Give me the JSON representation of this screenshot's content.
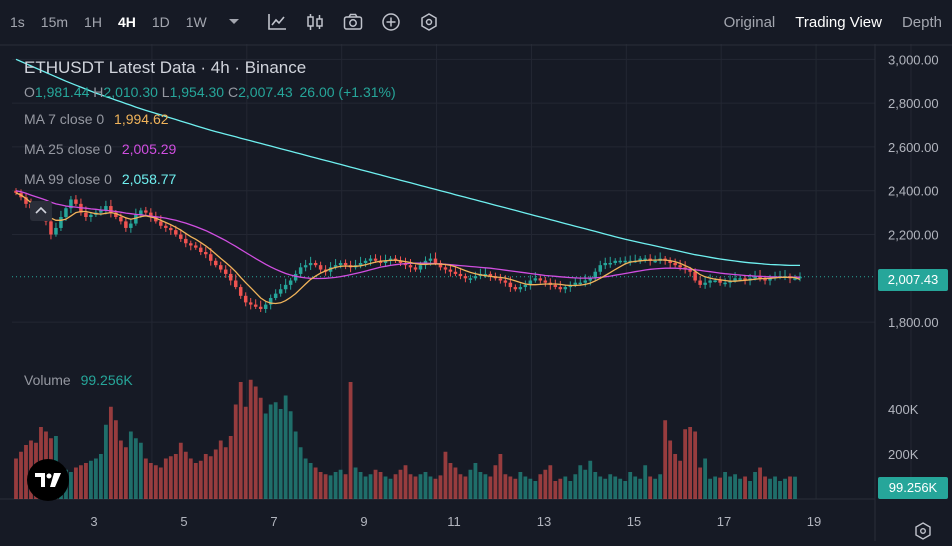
{
  "toolbar": {
    "timeframes": [
      "1s",
      "15m",
      "1H",
      "4H",
      "1D",
      "1W"
    ],
    "active_timeframe": "4H",
    "icons": [
      "chevron-down-icon",
      "line-chart-icon",
      "candles-icon",
      "camera-icon",
      "plus-circle-icon",
      "hexagon-settings-icon"
    ],
    "views": [
      "Original",
      "Trading View",
      "Depth"
    ],
    "active_view": "Trading View"
  },
  "legend": {
    "title": "ETHUSDT Latest Data · 4h · Binance",
    "ohlc": {
      "o_label": "O",
      "o": "1,981.44",
      "h_label": "H",
      "h": "2,010.30",
      "l_label": "L",
      "l": "1,954.30",
      "c_label": "C",
      "c": "2,007.43",
      "change": "26.00 (+1.31%)"
    },
    "ma7": {
      "label": "MA 7 close 0",
      "value": "1,994.62",
      "color": "#f0b35a"
    },
    "ma25": {
      "label": "MA 25 close 0",
      "value": "2,005.29",
      "color": "#d04ee0"
    },
    "ma99": {
      "label": "MA 99 close 0",
      "value": "2,058.77",
      "color": "#6ff0f0"
    },
    "volume_label": "Volume",
    "volume_value": "99.256K"
  },
  "colors": {
    "up": "#26a69a",
    "down": "#ef5350",
    "bg": "#161a25"
  },
  "price_axis": {
    "ticks": [
      "3,000.00",
      "2,800.00",
      "2,600.00",
      "2,400.00",
      "2,200.00",
      "1,800.00"
    ],
    "current": "2,007.43"
  },
  "volume_axis": {
    "ticks": [
      "400K",
      "200K"
    ],
    "current": "99.256K"
  },
  "time_axis": {
    "ticks": [
      "3",
      "5",
      "7",
      "9",
      "11",
      "13",
      "15",
      "17",
      "19"
    ]
  },
  "chart_data": {
    "type": "candlestick",
    "price_range": [
      1700,
      3070
    ],
    "volume_range": [
      0,
      600000
    ],
    "candle_closes": [
      2390,
      2370,
      2340,
      2320,
      2300,
      2290,
      2260,
      2200,
      2230,
      2280,
      2320,
      2360,
      2340,
      2300,
      2280,
      2290,
      2300,
      2310,
      2330,
      2300,
      2280,
      2260,
      2230,
      2250,
      2290,
      2310,
      2300,
      2280,
      2260,
      2240,
      2230,
      2220,
      2200,
      2180,
      2160,
      2150,
      2140,
      2120,
      2110,
      2080,
      2060,
      2040,
      2020,
      1990,
      1960,
      1920,
      1890,
      1880,
      1870,
      1860,
      1880,
      1910,
      1930,
      1950,
      1970,
      1990,
      2020,
      2050,
      2060,
      2070,
      2060,
      2040,
      2030,
      2050,
      2060,
      2070,
      2060,
      2050,
      2060,
      2070,
      2080,
      2090,
      2080,
      2070,
      2080,
      2090,
      2080,
      2070,
      2060,
      2050,
      2040,
      2060,
      2080,
      2090,
      2070,
      2050,
      2040,
      2030,
      2020,
      2010,
      2000,
      2000,
      2010,
      2020,
      2020,
      2010,
      2000,
      1990,
      1980,
      1960,
      1950,
      1960,
      1970,
      1990,
      2000,
      1990,
      1980,
      1970,
      1960,
      1950,
      1960,
      1970,
      1980,
      1980,
      1990,
      2000,
      2030,
      2060,
      2070,
      2070,
      2080,
      2080,
      2080,
      2080,
      2080,
      2090,
      2090,
      2080,
      2080,
      2090,
      2080,
      2070,
      2060,
      2050,
      2040,
      2030,
      1990,
      1970,
      1980,
      1990,
      1990,
      1980,
      1980,
      1990,
      2000,
      2000,
      1990,
      2000,
      2010,
      2000,
      1990,
      2000,
      2010,
      2010,
      2010,
      2000,
      2000,
      2007
    ],
    "volumes": [
      180000,
      210000,
      240000,
      260000,
      250000,
      320000,
      300000,
      270000,
      280000,
      150000,
      130000,
      120000,
      140000,
      150000,
      160000,
      170000,
      180000,
      200000,
      330000,
      410000,
      350000,
      260000,
      230000,
      300000,
      270000,
      250000,
      180000,
      160000,
      150000,
      140000,
      180000,
      190000,
      200000,
      250000,
      210000,
      180000,
      160000,
      170000,
      200000,
      190000,
      220000,
      260000,
      230000,
      280000,
      420000,
      520000,
      410000,
      530000,
      500000,
      450000,
      380000,
      420000,
      430000,
      400000,
      460000,
      390000,
      300000,
      230000,
      180000,
      160000,
      140000,
      120000,
      110000,
      105000,
      120000,
      130000,
      110000,
      520000,
      140000,
      120000,
      100000,
      110000,
      130000,
      120000,
      100000,
      90000,
      110000,
      130000,
      150000,
      110000,
      100000,
      110000,
      120000,
      100000,
      90000,
      105000,
      210000,
      160000,
      140000,
      110000,
      100000,
      130000,
      160000,
      120000,
      110000,
      100000,
      150000,
      200000,
      110000,
      100000,
      90000,
      120000,
      100000,
      90000,
      80000,
      110000,
      130000,
      150000,
      80000,
      90000,
      100000,
      80000,
      110000,
      150000,
      130000,
      170000,
      120000,
      100000,
      90000,
      110000,
      100000,
      90000,
      80000,
      120000,
      100000,
      90000,
      150000,
      100000,
      90000,
      110000,
      350000,
      260000,
      200000,
      170000,
      310000,
      320000,
      300000,
      140000,
      180000,
      90000,
      100000,
      95000,
      120000,
      100000,
      110000,
      90000,
      100000,
      80000,
      120000,
      140000,
      100000,
      90000,
      100000,
      80000,
      90000,
      100000,
      99256
    ],
    "ma7": [
      2390,
      2380,
      2365,
      2345,
      2325,
      2310,
      2295,
      2275,
      2265,
      2265,
      2270,
      2285,
      2300,
      2305,
      2305,
      2300,
      2295,
      2293,
      2297,
      2300,
      2296,
      2286,
      2276,
      2270,
      2275,
      2282,
      2285,
      2280,
      2275,
      2265,
      2255,
      2245,
      2233,
      2220,
      2205,
      2190,
      2178,
      2163,
      2148,
      2130,
      2111,
      2091,
      2072,
      2052,
      2030,
      2004,
      1980,
      1957,
      1934,
      1910,
      1895,
      1887,
      1885,
      1888,
      1898,
      1913,
      1930,
      1952,
      1974,
      1995,
      2010,
      2024,
      2034,
      2043,
      2050,
      2055,
      2056,
      2055,
      2055,
      2057,
      2062,
      2068,
      2074,
      2078,
      2080,
      2082,
      2083,
      2080,
      2076,
      2072,
      2067,
      2064,
      2064,
      2065,
      2066,
      2065,
      2063,
      2059,
      2053,
      2044,
      2035,
      2027,
      2021,
      2016,
      2012,
      2009,
      2006,
      2004,
      2001,
      1995,
      1988,
      1981,
      1974,
      1971,
      1971,
      1972,
      1974,
      1974,
      1974,
      1972,
      1969,
      1967,
      1967,
      1969,
      1972,
      1978,
      1988,
      2000,
      2013,
      2026,
      2040,
      2053,
      2066,
      2074,
      2077,
      2080,
      2082,
      2083,
      2083,
      2084,
      2083,
      2081,
      2076,
      2068,
      2058,
      2048,
      2033,
      2017,
      2007,
      2001,
      1996,
      1993,
      1990,
      1987,
      1987,
      1989,
      1991,
      1993,
      1996,
      1998,
      1999,
      2000,
      2002,
      2004,
      2005,
      2004,
      2003,
      1995
    ],
    "ma25": [
      2400,
      2395,
      2388,
      2380,
      2372,
      2365,
      2357,
      2347,
      2340,
      2335,
      2330,
      2327,
      2325,
      2322,
      2320,
      2317,
      2315,
      2312,
      2310,
      2308,
      2305,
      2302,
      2298,
      2295,
      2292,
      2290,
      2287,
      2284,
      2281,
      2278,
      2275,
      2270,
      2265,
      2258,
      2252,
      2244,
      2236,
      2227,
      2218,
      2207,
      2196,
      2184,
      2172,
      2159,
      2146,
      2132,
      2118,
      2104,
      2090,
      2077,
      2064,
      2052,
      2041,
      2031,
      2022,
      2015,
      2009,
      2005,
      2002,
      2000,
      1999,
      1999,
      2000,
      2002,
      2004,
      2008,
      2012,
      2017,
      2022,
      2027,
      2033,
      2039,
      2045,
      2051,
      2055,
      2059,
      2062,
      2065,
      2067,
      2068,
      2069,
      2069,
      2069,
      2068,
      2067,
      2066,
      2064,
      2062,
      2060,
      2058,
      2056,
      2054,
      2052,
      2050,
      2048,
      2046,
      2043,
      2040,
      2037,
      2034,
      2031,
      2028,
      2025,
      2022,
      2019,
      2016,
      2013,
      2011,
      2009,
      2007,
      2005,
      2003,
      2002,
      2001,
      2001,
      2001,
      2002,
      2004,
      2007,
      2010,
      2014,
      2018,
      2022,
      2026,
      2030,
      2034,
      2038,
      2041,
      2043,
      2045,
      2046,
      2046,
      2046,
      2045,
      2043,
      2041,
      2039,
      2036,
      2033,
      2030,
      2027,
      2024,
      2021,
      2019,
      2017,
      2015,
      2013,
      2012,
      2010,
      2009,
      2008,
      2007,
      2006,
      2006,
      2005,
      2005,
      2005,
      2005
    ],
    "ma99": [
      3000,
      2990,
      2980,
      2970,
      2960,
      2950,
      2940,
      2930,
      2920,
      2910,
      2900,
      2891,
      2882,
      2873,
      2864,
      2855,
      2846,
      2838,
      2830,
      2822,
      2814,
      2806,
      2798,
      2790,
      2782,
      2774,
      2767,
      2760,
      2753,
      2746,
      2739,
      2732,
      2725,
      2718,
      2711,
      2704,
      2697,
      2690,
      2683,
      2676,
      2670,
      2664,
      2658,
      2652,
      2646,
      2640,
      2634,
      2628,
      2622,
      2616,
      2610,
      2604,
      2598,
      2592,
      2586,
      2580,
      2574,
      2568,
      2562,
      2556,
      2550,
      2544,
      2538,
      2532,
      2526,
      2520,
      2514,
      2508,
      2502,
      2496,
      2490,
      2484,
      2478,
      2472,
      2466,
      2460,
      2454,
      2448,
      2442,
      2436,
      2430,
      2424,
      2418,
      2412,
      2406,
      2400,
      2394,
      2388,
      2382,
      2376,
      2370,
      2364,
      2358,
      2352,
      2346,
      2340,
      2334,
      2328,
      2322,
      2316,
      2310,
      2304,
      2298,
      2292,
      2286,
      2280,
      2274,
      2268,
      2262,
      2256,
      2250,
      2244,
      2238,
      2232,
      2226,
      2220,
      2214,
      2208,
      2202,
      2196,
      2190,
      2184,
      2178,
      2173,
      2168,
      2163,
      2158,
      2153,
      2148,
      2143,
      2138,
      2133,
      2128,
      2123,
      2118,
      2113,
      2108,
      2104,
      2100,
      2096,
      2092,
      2088,
      2085,
      2082,
      2079,
      2076,
      2073,
      2071,
      2069,
      2067,
      2065,
      2063,
      2062,
      2061,
      2060,
      2059,
      2059,
      2059
    ]
  }
}
